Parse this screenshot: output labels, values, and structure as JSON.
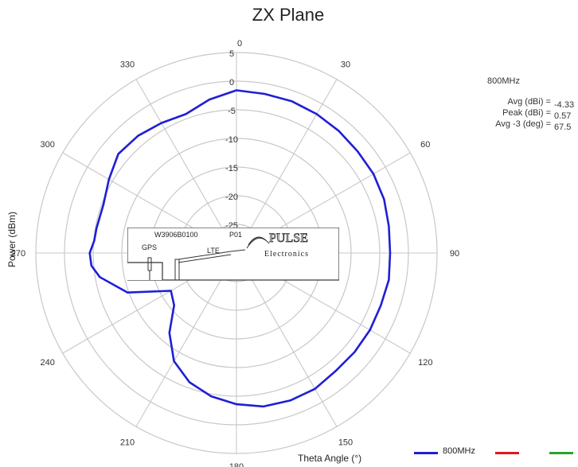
{
  "chart_data": {
    "type": "polar-line",
    "title": "ZX Plane",
    "ylabel": "Power (dBm)",
    "xlabel": "Theta  Angle (°)",
    "radial_ticks": [
      5,
      0,
      -5,
      -10,
      -15,
      -20,
      -25
    ],
    "radial_range": [
      -30,
      5
    ],
    "angle_labels": [
      "0",
      "30",
      "60",
      "90",
      "120",
      "150",
      "180",
      "210",
      "240",
      "270",
      "300",
      "330"
    ],
    "series": [
      {
        "name": "800MHz",
        "color": "#1f1fd6",
        "theta": [
          0,
          10,
          20,
          30,
          40,
          50,
          60,
          70,
          80,
          90,
          100,
          110,
          120,
          130,
          140,
          150,
          160,
          170,
          180,
          190,
          200,
          210,
          220,
          230,
          240,
          250,
          260,
          265,
          270,
          275,
          280,
          290,
          300,
          310,
          320,
          330,
          340,
          350,
          360
        ],
        "r": [
          -1.6,
          -1.8,
          -1.8,
          -2,
          -2.2,
          -2.4,
          -2.4,
          -2.6,
          -3,
          -3.2,
          -3,
          -3.2,
          -3.1,
          -3.1,
          -3.1,
          -2.6,
          -2.6,
          -2.8,
          -3.6,
          -4.6,
          -6,
          -8.2,
          -11.8,
          -15.8,
          -16.8,
          -9.8,
          -5.8,
          -4.6,
          -4.4,
          -5.1,
          -5.2,
          -5.3,
          -4.3,
          -3.1,
          -3.3,
          -3.8,
          -4.2,
          -2.8,
          -1.6
        ]
      },
      {
        "name": "",
        "color": "#e0181f",
        "theta": [],
        "r": []
      },
      {
        "name": "",
        "color": "#27a52a",
        "theta": [],
        "r": []
      }
    ]
  },
  "stats": {
    "freq": "800MHz",
    "rows": [
      {
        "label": "Avg (dBi) =",
        "value": "-4.33"
      },
      {
        "label": "Peak (dBi) =",
        "value": "0.57"
      },
      {
        "label": "Avg -3 (deg) =",
        "value": "67.5"
      }
    ]
  },
  "logo": {
    "model": "W3906B0100",
    "rev": "P01",
    "gps": "GPS",
    "lte": "LTE",
    "brand": "PULSE",
    "sub": "Electronics"
  }
}
